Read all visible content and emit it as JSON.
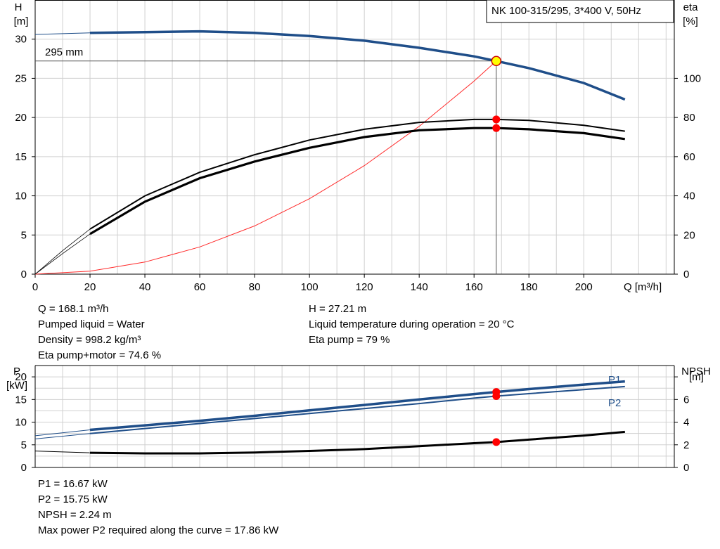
{
  "header": {
    "title": "NK 100-315/295, 3*400 V, 50Hz",
    "impeller_label": "295 mm"
  },
  "colors": {
    "head": "#1f4e89",
    "power": "#1f4e89",
    "efficiency": "#000000",
    "system_curve": "#ff2a2a",
    "grid": "#d0d0d0",
    "operating_point": "#ff0000",
    "duty_marker_fill": "#ffff00",
    "duty_marker_stroke": "#cc0000"
  },
  "chart_data": [
    {
      "type": "line",
      "id": "qh",
      "xlabel": "Q [m³/h]",
      "ylabel_left": [
        "H",
        "[m]"
      ],
      "ylabel_right": [
        "eta",
        "[%]"
      ],
      "xlim": [
        0,
        233
      ],
      "ylim_left": [
        0,
        35
      ],
      "ylim_right": [
        0,
        140
      ],
      "xticks": [
        "0",
        "20",
        "40",
        "60",
        "80",
        "100",
        "120",
        "140",
        "160",
        "180",
        "200"
      ],
      "yticks_left": [
        "0",
        "5",
        "10",
        "15",
        "20",
        "25",
        "30"
      ],
      "yticks_right": [
        "0",
        "20",
        "40",
        "60",
        "80",
        "100"
      ],
      "grid": true,
      "operating_point": {
        "q": 168.1,
        "h": 27.21
      },
      "series": [
        {
          "key": "head",
          "axis": "left",
          "x": [
            20,
            40,
            60,
            80,
            100,
            120,
            140,
            160,
            168.1,
            180,
            200,
            215
          ],
          "y": [
            30.8,
            30.9,
            31.0,
            30.8,
            30.4,
            29.8,
            28.9,
            27.8,
            27.21,
            26.3,
            24.4,
            22.3
          ]
        },
        {
          "key": "head_extension",
          "axis": "left",
          "x": [
            0,
            20
          ],
          "y": [
            30.6,
            30.8
          ]
        },
        {
          "key": "eta_pump",
          "axis": "right",
          "x": [
            20,
            40,
            60,
            80,
            100,
            120,
            140,
            160,
            168.1,
            180,
            200,
            215
          ],
          "y": [
            23,
            40,
            52,
            61,
            68.5,
            74,
            77.5,
            79,
            79,
            78.5,
            76,
            73
          ]
        },
        {
          "key": "eta_pump_extension",
          "axis": "right",
          "x": [
            0,
            10,
            20
          ],
          "y": [
            0,
            12,
            23
          ]
        },
        {
          "key": "eta_pump_motor",
          "axis": "right",
          "x": [
            20,
            40,
            60,
            80,
            100,
            120,
            140,
            160,
            168.1,
            180,
            200,
            215
          ],
          "y": [
            20.5,
            37,
            49,
            57.5,
            64.5,
            70,
            73.5,
            74.6,
            74.6,
            74,
            72,
            69
          ]
        },
        {
          "key": "eta_pump_motor_extension",
          "axis": "right",
          "x": [
            0,
            10,
            20
          ],
          "y": [
            0,
            10.5,
            20.5
          ]
        },
        {
          "key": "system_curve",
          "axis": "left",
          "x": [
            0,
            20,
            40,
            60,
            80,
            100,
            120,
            140,
            160,
            168.1
          ],
          "y": [
            0,
            0.38,
            1.54,
            3.47,
            6.16,
            9.63,
            13.86,
            18.87,
            24.64,
            27.21
          ]
        }
      ],
      "operating_markers_right": [
        79,
        74.6
      ]
    },
    {
      "type": "line",
      "id": "power",
      "ylabel_left": [
        "P",
        "[kW]"
      ],
      "ylabel_right": [
        "NPSH",
        "[m]"
      ],
      "xlim": [
        0,
        233
      ],
      "ylim_left": [
        0,
        22.5
      ],
      "ylim_right": [
        0,
        9
      ],
      "yticks_left": [
        "0",
        "5",
        "10",
        "15",
        "20"
      ],
      "yticks_right": [
        "0",
        "2",
        "4",
        "6",
        "[m]"
      ],
      "grid": true,
      "series": [
        {
          "key": "p1",
          "name": "P1",
          "axis": "left",
          "x": [
            20,
            40,
            60,
            80,
            100,
            120,
            140,
            160,
            168.1,
            180,
            200,
            215
          ],
          "y": [
            8.3,
            9.3,
            10.3,
            11.4,
            12.6,
            13.8,
            15.0,
            16.2,
            16.67,
            17.3,
            18.3,
            19.0
          ]
        },
        {
          "key": "p1_extension",
          "axis": "left",
          "x": [
            0,
            20
          ],
          "y": [
            7.0,
            8.3
          ]
        },
        {
          "key": "p2",
          "name": "P2",
          "axis": "left",
          "x": [
            20,
            40,
            60,
            80,
            100,
            120,
            140,
            160,
            168.1,
            180,
            200,
            215
          ],
          "y": [
            7.5,
            8.6,
            9.7,
            10.8,
            11.9,
            13.0,
            14.1,
            15.3,
            15.75,
            16.3,
            17.2,
            17.86
          ]
        },
        {
          "key": "p2_extension",
          "axis": "left",
          "x": [
            0,
            20
          ],
          "y": [
            6.3,
            7.5
          ]
        },
        {
          "key": "npsh",
          "axis": "right",
          "x": [
            20,
            40,
            60,
            80,
            100,
            120,
            140,
            160,
            168.1,
            180,
            200,
            215
          ],
          "y": [
            1.3,
            1.24,
            1.24,
            1.32,
            1.46,
            1.62,
            1.88,
            2.14,
            2.24,
            2.46,
            2.82,
            3.14
          ]
        },
        {
          "key": "npsh_extension",
          "axis": "right",
          "x": [
            0,
            20
          ],
          "y": [
            1.45,
            1.3
          ]
        }
      ],
      "operating_markers": {
        "p1": 16.67,
        "p2": 15.75,
        "npsh": 2.24
      }
    }
  ],
  "info_top": {
    "q": "Q = 168.1 m³/h",
    "liquid": "Pumped liquid = Water",
    "density": "Density = 998.2 kg/m³",
    "eta_pump_motor": "Eta pump+motor = 74.6 %",
    "h": "H = 27.21 m",
    "temperature": "Liquid temperature during operation = 20 °C",
    "eta_pump": "Eta pump = 79 %"
  },
  "info_bottom": {
    "p1": "P1 = 16.67 kW",
    "p2": "P2 = 15.75 kW",
    "npsh": "NPSH = 2.24 m",
    "max_power": "Max power P2 required along the curve = 17.86 kW"
  }
}
